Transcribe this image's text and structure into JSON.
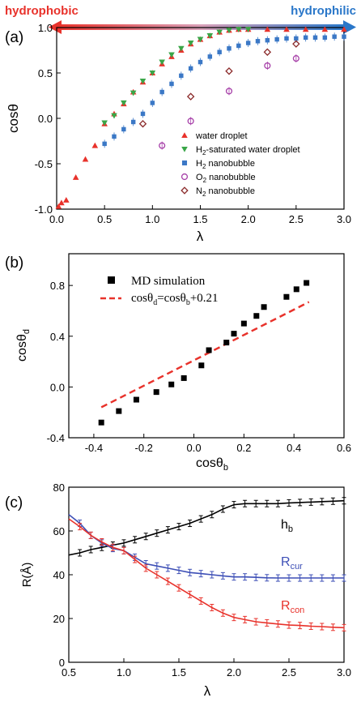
{
  "figure": {
    "banner": {
      "left_label": "hydrophobic",
      "right_label": "hydrophilic",
      "left_color": "#e8322b",
      "right_color": "#2a77c9"
    }
  },
  "chart_data": [
    {
      "panel_label": "(a)",
      "type": "scatter",
      "xlabel": "λ",
      "ylabel": "cosθ",
      "xlim": [
        0.0,
        3.0
      ],
      "ylim": [
        -1.0,
        1.0
      ],
      "xticks": [
        "0.0",
        "0.5",
        "1.0",
        "1.5",
        "2.0",
        "2.5",
        "3.0"
      ],
      "yticks": [
        "-1.0",
        "-0.5",
        "0.0",
        "0.5",
        "1.0"
      ],
      "legend_position": "lower-right",
      "series": [
        {
          "name": "water droplet",
          "marker": "triangle-up",
          "color": "#e8322b",
          "filled": true,
          "x": [
            0.02,
            0.05,
            0.1,
            0.2,
            0.3,
            0.4,
            0.5,
            0.6,
            0.7,
            0.8,
            0.9,
            1.0,
            1.1,
            1.2,
            1.3,
            1.4,
            1.5,
            1.6,
            1.7,
            1.8,
            1.9,
            2.0,
            2.2,
            2.4,
            2.6,
            2.8,
            3.0
          ],
          "y": [
            -0.97,
            -0.93,
            -0.9,
            -0.65,
            -0.45,
            -0.3,
            -0.06,
            0.05,
            0.16,
            0.29,
            0.4,
            0.5,
            0.6,
            0.68,
            0.75,
            0.82,
            0.87,
            0.91,
            0.95,
            0.97,
            0.98,
            0.98,
            0.98,
            0.98,
            0.98,
            0.98,
            0.98
          ]
        },
        {
          "name": "H2-saturated water droplet",
          "marker": "triangle-down",
          "color": "#3aa648",
          "filled": true,
          "x": [
            0.5,
            0.6,
            0.7,
            0.8,
            0.9,
            1.0,
            1.1,
            1.2,
            1.3,
            1.4,
            1.5,
            1.6,
            1.7,
            1.8,
            1.9,
            2.0
          ],
          "y": [
            -0.05,
            0.03,
            0.17,
            0.28,
            0.41,
            0.5,
            0.62,
            0.7,
            0.77,
            0.83,
            0.87,
            0.91,
            0.95,
            0.97,
            0.98,
            0.98
          ]
        },
        {
          "name": "H2 nanobubble",
          "marker": "square",
          "color": "#3b78c6",
          "filled": true,
          "x": [
            0.5,
            0.6,
            0.7,
            0.8,
            0.9,
            1.0,
            1.1,
            1.2,
            1.3,
            1.4,
            1.5,
            1.6,
            1.7,
            1.8,
            1.9,
            2.0,
            2.1,
            2.2,
            2.3,
            2.4,
            2.5,
            2.6,
            2.7,
            2.8,
            2.9,
            3.0
          ],
          "y": [
            -0.28,
            -0.2,
            -0.12,
            -0.04,
            0.05,
            0.17,
            0.29,
            0.38,
            0.47,
            0.55,
            0.62,
            0.68,
            0.73,
            0.77,
            0.8,
            0.83,
            0.85,
            0.86,
            0.87,
            0.88,
            0.88,
            0.89,
            0.89,
            0.89,
            0.9,
            0.9
          ]
        },
        {
          "name": "O2 nanobubble",
          "marker": "circle-open",
          "color": "#a63fa8",
          "filled": false,
          "x": [
            1.1,
            1.4,
            1.8,
            2.2,
            2.5
          ],
          "y": [
            -0.3,
            -0.03,
            0.3,
            0.58,
            0.66
          ]
        },
        {
          "name": "N2 nanobubble",
          "marker": "diamond-open",
          "color": "#8b2a2a",
          "filled": false,
          "x": [
            0.9,
            1.4,
            1.8,
            2.2,
            2.5
          ],
          "y": [
            -0.06,
            0.24,
            0.52,
            0.73,
            0.82
          ]
        }
      ]
    },
    {
      "panel_label": "(b)",
      "type": "scatter",
      "xlabel": "cosθb",
      "ylabel": "cosθd",
      "xlim": [
        -0.5,
        0.6
      ],
      "ylim": [
        -0.4,
        1.05
      ],
      "xticks": [
        "-0.4",
        "-0.2",
        "0.0",
        "0.2",
        "0.4",
        "0.6"
      ],
      "yticks": [
        "-0.4",
        "0.0",
        "0.4",
        "0.8"
      ],
      "legend_position": "top-left",
      "legend": [
        "MD simulation",
        "cosθd=cosθb+0.21"
      ],
      "series": [
        {
          "name": "MD simulation",
          "marker": "square",
          "color": "#000000",
          "x": [
            -0.37,
            -0.3,
            -0.23,
            -0.15,
            -0.09,
            -0.04,
            0.03,
            0.06,
            0.13,
            0.16,
            0.2,
            0.25,
            0.28,
            0.37,
            0.41,
            0.45
          ],
          "y": [
            -0.28,
            -0.19,
            -0.1,
            -0.04,
            0.02,
            0.07,
            0.17,
            0.29,
            0.35,
            0.42,
            0.5,
            0.56,
            0.63,
            0.71,
            0.77,
            0.82
          ]
        }
      ],
      "fit_line": {
        "label": "cosθd=cosθb+0.21",
        "slope": 1.0,
        "intercept": 0.21,
        "x_range": [
          -0.37,
          0.46
        ],
        "color": "#e8322b",
        "style": "dashed"
      }
    },
    {
      "panel_label": "(c)",
      "type": "line",
      "xlabel": "λ",
      "ylabel": "R(Å)",
      "xlim": [
        0.5,
        3.0
      ],
      "ylim": [
        0,
        80
      ],
      "xticks": [
        "0.5",
        "1.0",
        "1.5",
        "2.0",
        "2.5",
        "3.0"
      ],
      "yticks": [
        "0",
        "20",
        "40",
        "60",
        "80"
      ],
      "x": [
        0.5,
        0.6,
        0.7,
        0.8,
        0.9,
        1.0,
        1.1,
        1.2,
        1.3,
        1.4,
        1.5,
        1.6,
        1.7,
        1.8,
        1.9,
        2.0,
        2.1,
        2.2,
        2.3,
        2.4,
        2.5,
        2.6,
        2.7,
        2.8,
        2.9,
        3.0
      ],
      "series": [
        {
          "name": "hb",
          "color": "#000000",
          "values": [
            49,
            50,
            51.5,
            52.5,
            53.5,
            54.5,
            56,
            57.5,
            59,
            60.5,
            62,
            63.5,
            65.5,
            67.5,
            70,
            72,
            72.5,
            72.5,
            72.5,
            72.5,
            72.8,
            73,
            73.2,
            73.4,
            73.6,
            73.8
          ]
        },
        {
          "name": "Rcur",
          "color": "#3d4fb6",
          "values": [
            67.5,
            63.5,
            58,
            54.5,
            52,
            51,
            48,
            45,
            44,
            43,
            42,
            41,
            40.5,
            40,
            39.5,
            39,
            39,
            38.8,
            38.6,
            38.5,
            38.5,
            38.5,
            38.5,
            38.5,
            38.5,
            38.5
          ]
        },
        {
          "name": "Rcon",
          "color": "#e8322b",
          "values": [
            65.5,
            62,
            58,
            55,
            52.5,
            51,
            47,
            43,
            40,
            37,
            34,
            31,
            28,
            25,
            22.5,
            20.5,
            19.5,
            18.5,
            18,
            17.5,
            17,
            16.8,
            16.5,
            16.3,
            16,
            15.8
          ]
        }
      ]
    }
  ]
}
